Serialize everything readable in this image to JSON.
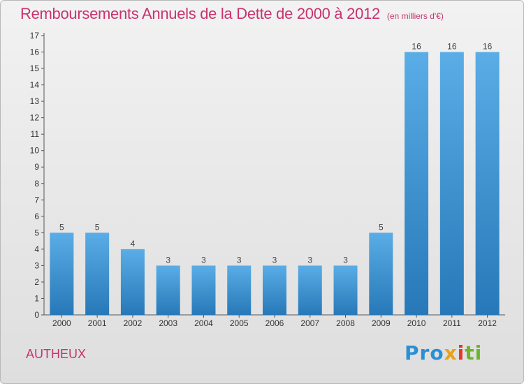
{
  "chart_data": {
    "type": "bar",
    "title": "Remboursements Annuels de la Dette de 2000 à 2012",
    "subtitle": "(en milliers d'€)",
    "categories": [
      "2000",
      "2001",
      "2002",
      "2003",
      "2004",
      "2005",
      "2006",
      "2007",
      "2008",
      "2009",
      "2010",
      "2011",
      "2012"
    ],
    "values": [
      5,
      5,
      4,
      3,
      3,
      3,
      3,
      3,
      3,
      5,
      16,
      16,
      16
    ],
    "data_labels": [
      "5",
      "5",
      "4",
      "3",
      "3",
      "3",
      "3",
      "3",
      "3",
      "5",
      "16",
      "16",
      "16"
    ],
    "yticks": [
      "0",
      "1",
      "2",
      "3",
      "4",
      "5",
      "6",
      "7",
      "8",
      "9",
      "10",
      "11",
      "12",
      "13",
      "14",
      "15",
      "16",
      "17"
    ],
    "ylim": [
      0,
      17
    ],
    "xlabel": "",
    "ylabel": "",
    "grid": false,
    "bar_color_top": "#5aade6",
    "bar_color_bottom": "#2778b8"
  },
  "footer": {
    "commune": "AUTHEUX",
    "logo_text": "Proxiti",
    "logo_parts": [
      "Pro",
      "x",
      "i",
      "ti"
    ]
  },
  "colors": {
    "title": "#c8336e",
    "background_top": "#f2f2f2",
    "background_bottom": "#dedede"
  }
}
